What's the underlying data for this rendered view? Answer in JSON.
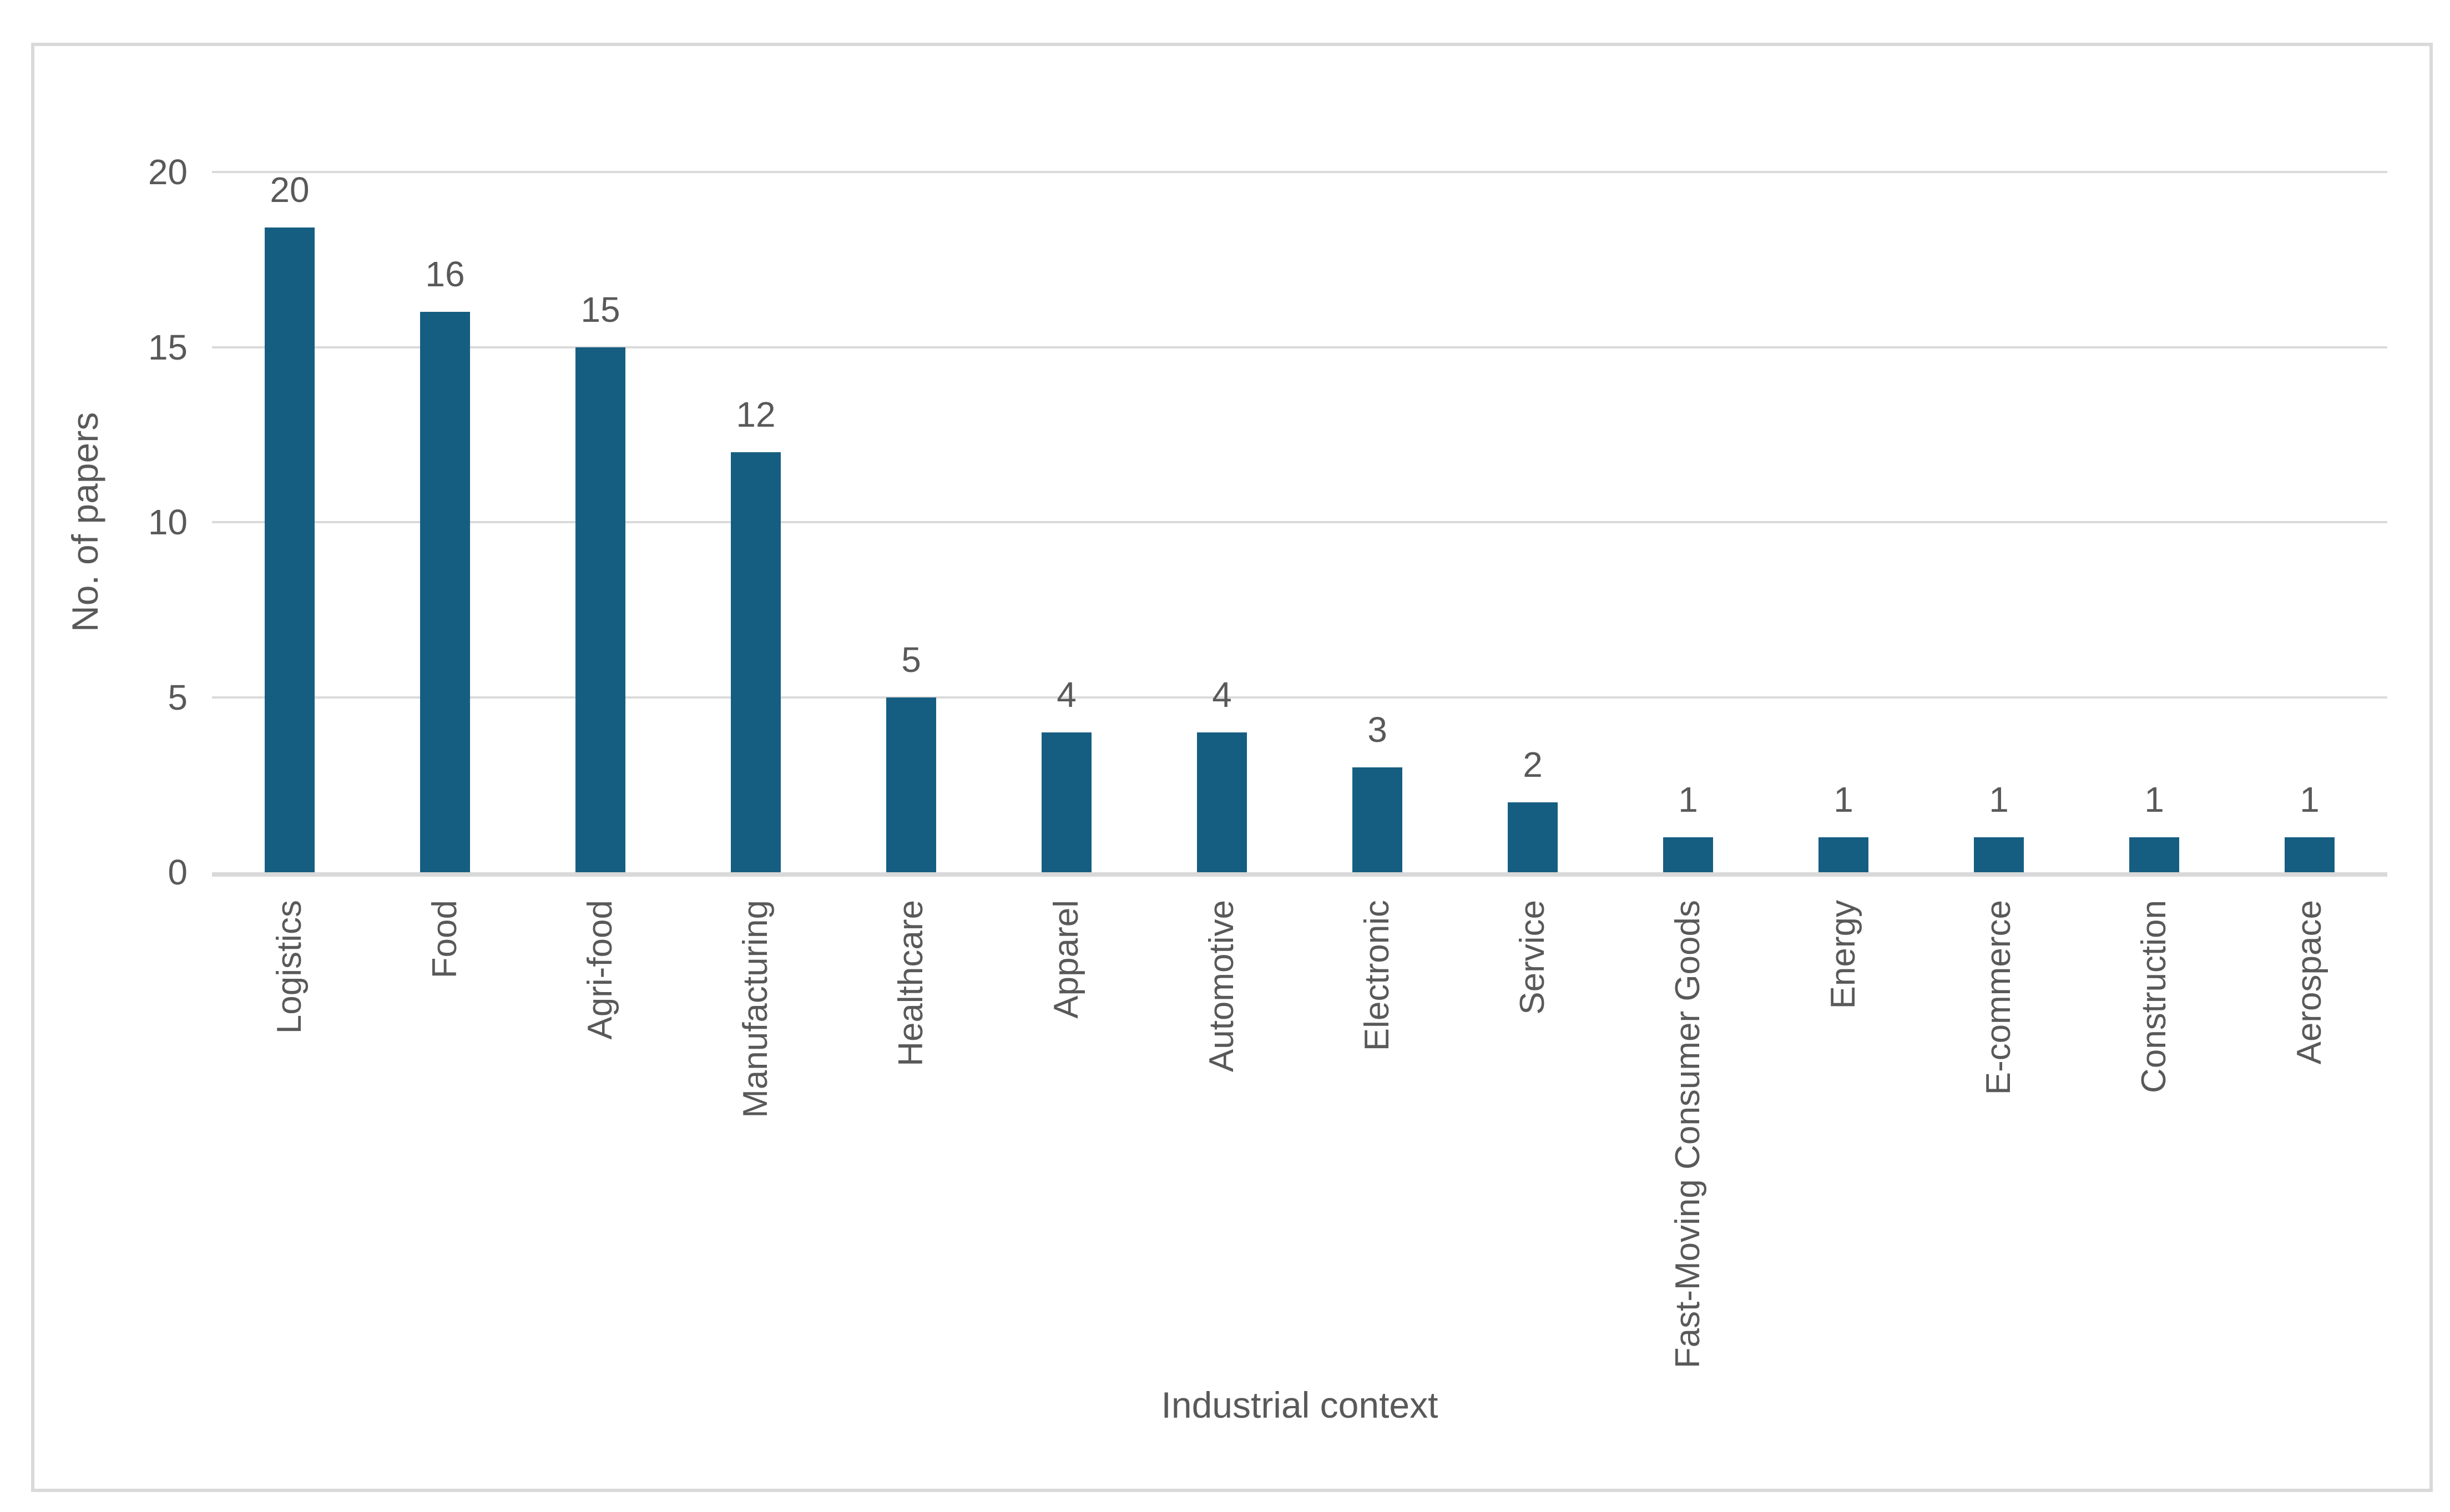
{
  "chart_data": {
    "type": "bar",
    "title": "",
    "categories": [
      "Logistics",
      "Food",
      "Agri-food",
      "Manufacturing",
      "Healthcare",
      "Apparel",
      "Automotive",
      "Electronic",
      "Service",
      "Fast-Moving Consumer Goods",
      "Energy",
      "E-commerce",
      "Construction",
      "Aerospace"
    ],
    "values": [
      20,
      16,
      15,
      12,
      5,
      4,
      4,
      3,
      2,
      1,
      1,
      1,
      1,
      1
    ],
    "xlabel": "Industrial context",
    "ylabel": "No. of papers",
    "ylim": [
      0,
      20
    ],
    "yticks": [
      0,
      5,
      10,
      15,
      20
    ],
    "grid": true,
    "legend": "none",
    "data_labels_shown": true
  },
  "styles": {
    "bar_color": "#165E81",
    "text_color": "#595959",
    "gridline_color": "#DADADA",
    "axis_line_color": "#D9D9D9",
    "frame_border_color": "#D9D9D9",
    "background_color": "#FFFFFF"
  }
}
